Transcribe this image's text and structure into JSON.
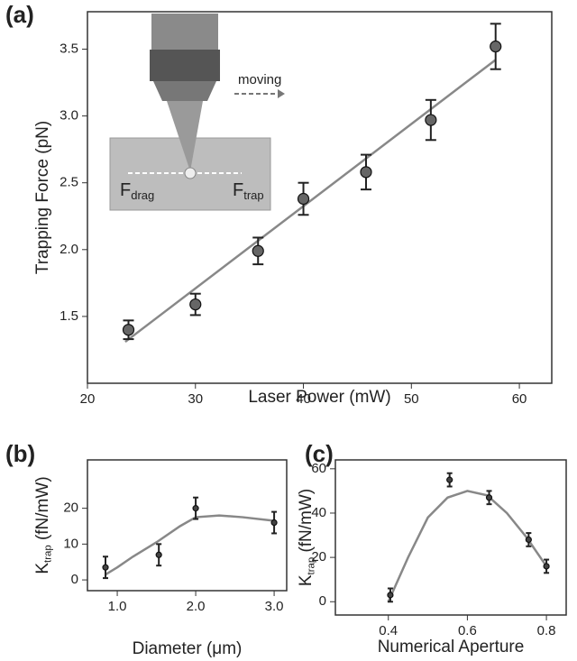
{
  "chart_data": [
    {
      "type": "scatter",
      "panel": "(a)",
      "x_label": "Laser Power (mW)",
      "y_label": {
        "main": "Trapping Force (pN)"
      },
      "x": [
        23.8,
        30,
        35.8,
        40,
        45.8,
        51.8,
        57.8
      ],
      "values": [
        1.4,
        1.59,
        1.99,
        2.38,
        2.58,
        2.97,
        3.52
      ],
      "errors": [
        0.07,
        0.08,
        0.1,
        0.12,
        0.13,
        0.15,
        0.17
      ],
      "fit": {
        "x": [
          23.5,
          57.8
        ],
        "values": [
          1.31,
          3.42
        ]
      },
      "xlim": [
        20,
        63
      ],
      "ylim": [
        1.0,
        3.78
      ],
      "xticks": [
        20,
        30,
        40,
        50,
        60
      ],
      "yticks": [
        1.5,
        {
          "value": 2,
          "label": "2.0"
        },
        2.5,
        {
          "value": 3,
          "label": "3.0"
        },
        3.5
      ],
      "color": "#666666",
      "fit_color": "#888888",
      "annotations": {
        "moving": "moving",
        "drag": {
          "main": "F",
          "sub": "drag"
        },
        "trap": {
          "main": "F",
          "sub": "trap"
        }
      }
    },
    {
      "type": "scatter",
      "panel": "(b)",
      "x_label": "Diameter (μm)",
      "y_label": {
        "main": "K",
        "sub": "trap",
        "rest": " (fN/mW)"
      },
      "x": [
        0.85,
        1.53,
        2.0,
        3.0
      ],
      "values": [
        3.5,
        7,
        20,
        16
      ],
      "errors": [
        3,
        3,
        3,
        3
      ],
      "fit": {
        "x": [
          0.85,
          1.0,
          1.2,
          1.5,
          1.8,
          2.0,
          2.3,
          2.6,
          3.0
        ],
        "values": [
          1.5,
          3.5,
          6.5,
          10.5,
          15,
          17.5,
          18,
          17.5,
          16.5
        ]
      },
      "xlim": [
        0.62,
        3.16
      ],
      "ylim": [
        -3,
        33.5
      ],
      "xticks": [
        {
          "value": 1,
          "label": "1.0"
        },
        {
          "value": 2,
          "label": "2.0"
        },
        {
          "value": 3,
          "label": "3.0"
        }
      ],
      "yticks": [
        0,
        10,
        20
      ],
      "color": "#444444",
      "fit_color": "#888888"
    },
    {
      "type": "scatter",
      "panel": "(c)",
      "x_label": "Numerical Aperture",
      "y_label": {
        "main": "K",
        "sub": "trap",
        "rest": " (fN/mW)"
      },
      "x": [
        0.405,
        0.555,
        0.655,
        0.755,
        0.8
      ],
      "values": [
        3,
        55,
        47,
        28,
        16
      ],
      "errors": [
        3,
        3,
        3,
        3,
        3
      ],
      "fit": {
        "x": [
          0.4,
          0.45,
          0.5,
          0.55,
          0.6,
          0.65,
          0.7,
          0.75,
          0.8
        ],
        "values": [
          0,
          20,
          38,
          47,
          50,
          48,
          40,
          29,
          16
        ]
      },
      "xlim": [
        0.266,
        0.85
      ],
      "ylim": [
        -6,
        64
      ],
      "xticks": [
        0.4,
        0.6,
        0.8
      ],
      "yticks": [
        0,
        20,
        40,
        60
      ],
      "color": "#444444",
      "fit_color": "#888888"
    }
  ]
}
